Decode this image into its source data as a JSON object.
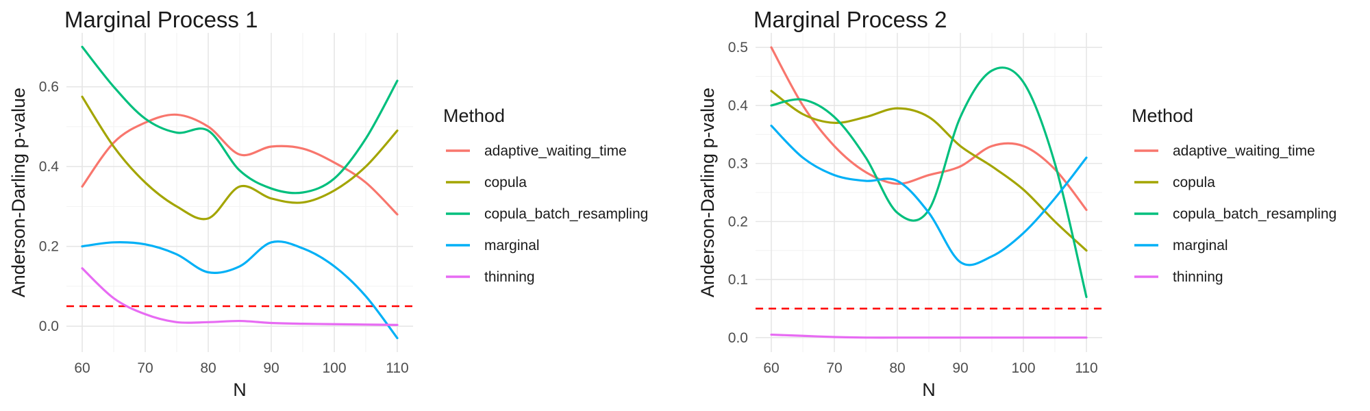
{
  "chart_data": [
    {
      "type": "line",
      "title": "Marginal Process 1",
      "xlabel": "N",
      "ylabel": "Anderson-Darling p-value",
      "xlim": [
        57.5,
        112.5
      ],
      "ylim": [
        -0.065,
        0.735
      ],
      "x_ticks": [
        60,
        70,
        80,
        90,
        100,
        110
      ],
      "x_tick_labels": [
        "60",
        "70",
        "80",
        "90",
        "100",
        "110"
      ],
      "y_ticks": [
        0.0,
        0.2,
        0.4,
        0.6
      ],
      "y_tick_labels": [
        "0.0",
        "0.2",
        "0.4",
        "0.6"
      ],
      "grid": true,
      "reference_line": {
        "y": 0.05,
        "color": "#FF0000",
        "style": "dashed"
      },
      "legend": {
        "title": "Method",
        "placement": "right"
      },
      "x": [
        60,
        65,
        70,
        75,
        80,
        85,
        90,
        95,
        100,
        105,
        110
      ],
      "series": [
        {
          "name": "adaptive_waiting_time",
          "color": "#F8766D",
          "values": [
            0.35,
            0.46,
            0.51,
            0.53,
            0.5,
            0.43,
            0.45,
            0.445,
            0.41,
            0.36,
            0.28
          ]
        },
        {
          "name": "copula",
          "color": "#A3A500",
          "values": [
            0.575,
            0.45,
            0.36,
            0.3,
            0.27,
            0.35,
            0.32,
            0.31,
            0.34,
            0.4,
            0.49
          ]
        },
        {
          "name": "copula_batch_resampling",
          "color": "#00BF7D",
          "values": [
            0.7,
            0.6,
            0.52,
            0.485,
            0.49,
            0.39,
            0.345,
            0.335,
            0.37,
            0.47,
            0.615
          ]
        },
        {
          "name": "marginal",
          "color": "#00B0F6",
          "values": [
            0.2,
            0.21,
            0.205,
            0.18,
            0.135,
            0.15,
            0.21,
            0.195,
            0.15,
            0.075,
            -0.03
          ]
        },
        {
          "name": "thinning",
          "color": "#E76BF3",
          "values": [
            0.145,
            0.07,
            0.03,
            0.01,
            0.01,
            0.013,
            0.008,
            0.006,
            0.005,
            0.004,
            0.003
          ]
        }
      ]
    },
    {
      "type": "line",
      "title": "Marginal Process 2",
      "xlabel": "N",
      "ylabel": "Anderson-Darling p-value",
      "xlim": [
        57.5,
        112.5
      ],
      "ylim": [
        -0.025,
        0.525
      ],
      "x_ticks": [
        60,
        70,
        80,
        90,
        100,
        110
      ],
      "x_tick_labels": [
        "60",
        "70",
        "80",
        "90",
        "100",
        "110"
      ],
      "y_ticks": [
        0.0,
        0.1,
        0.2,
        0.3,
        0.4,
        0.5
      ],
      "y_tick_labels": [
        "0.0",
        "0.1",
        "0.2",
        "0.3",
        "0.4",
        "0.5"
      ],
      "grid": true,
      "reference_line": {
        "y": 0.05,
        "color": "#FF0000",
        "style": "dashed"
      },
      "legend": {
        "title": "Method",
        "placement": "right"
      },
      "x": [
        60,
        65,
        70,
        75,
        80,
        85,
        90,
        95,
        100,
        105,
        110
      ],
      "series": [
        {
          "name": "adaptive_waiting_time",
          "color": "#F8766D",
          "values": [
            0.5,
            0.4,
            0.33,
            0.285,
            0.265,
            0.28,
            0.295,
            0.33,
            0.33,
            0.29,
            0.22
          ]
        },
        {
          "name": "copula",
          "color": "#A3A500",
          "values": [
            0.425,
            0.385,
            0.37,
            0.38,
            0.395,
            0.38,
            0.33,
            0.295,
            0.255,
            0.2,
            0.15
          ]
        },
        {
          "name": "copula_batch_resampling",
          "color": "#00BF7D",
          "values": [
            0.4,
            0.41,
            0.38,
            0.31,
            0.215,
            0.22,
            0.38,
            0.46,
            0.44,
            0.3,
            0.07
          ]
        },
        {
          "name": "marginal",
          "color": "#00B0F6",
          "values": [
            0.365,
            0.31,
            0.28,
            0.27,
            0.27,
            0.215,
            0.13,
            0.14,
            0.18,
            0.24,
            0.31
          ]
        },
        {
          "name": "thinning",
          "color": "#E76BF3",
          "values": [
            0.005,
            0.003,
            0.001,
            0.0,
            0.0,
            0.0,
            0.0,
            0.0,
            0.0,
            0.0,
            0.0
          ]
        }
      ]
    }
  ]
}
